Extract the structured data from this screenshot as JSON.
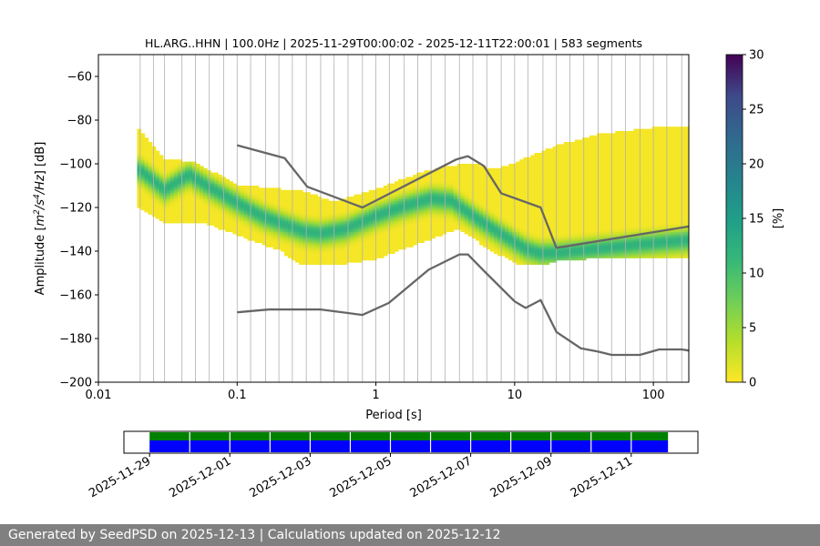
{
  "chart_data": [
    {
      "type": "heatmap",
      "title": "HL.ARG..HHN | 100.0Hz | 2025-11-29T00:00:02 - 2025-12-11T22:00:01 | 583 segments",
      "xlabel": "Period [s]",
      "ylabel_prefix": "Amplitude [",
      "ylabel_unit_parts": [
        "m",
        "2",
        "/s",
        "4",
        "/Hz",
        "] [dB]"
      ],
      "x_scale": "log",
      "xlim": [
        0.01,
        180
      ],
      "ylim": [
        -200,
        -50
      ],
      "x_ticks": [
        0.01,
        0.1,
        1,
        10,
        100
      ],
      "x_tick_labels": [
        "0.01",
        "0.1",
        "1",
        "10",
        "100"
      ],
      "y_ticks": [
        -200,
        -180,
        -160,
        -140,
        -120,
        -100,
        -80,
        -60
      ],
      "y_tick_labels": [
        "−200",
        "−180",
        "−160",
        "−140",
        "−120",
        "−100",
        "−80",
        "−60"
      ],
      "grid": "vertical lines at period bins",
      "period_grid_lines": [
        0.02,
        0.025,
        0.03,
        0.04,
        0.05,
        0.063,
        0.08,
        0.1,
        0.125,
        0.16,
        0.2,
        0.25,
        0.315,
        0.4,
        0.5,
        0.63,
        0.8,
        1,
        1.25,
        1.6,
        2,
        2.5,
        3.15,
        4,
        5,
        6.3,
        8,
        10,
        12.5,
        16,
        20,
        25,
        31.5,
        40,
        50,
        63,
        80,
        100,
        125,
        160
      ],
      "colorbar": {
        "label": "[%]",
        "range": [
          0,
          30
        ],
        "ticks": [
          0,
          5,
          10,
          15,
          20,
          25,
          30
        ],
        "colormap": "viridis_r"
      },
      "density_band": {
        "description": "Probabilistic PSD density; ridge = mode, spread = occupied amplitude range",
        "ridge": [
          [
            0.02,
            -103
          ],
          [
            0.03,
            -112
          ],
          [
            0.045,
            -105
          ],
          [
            0.06,
            -110
          ],
          [
            0.1,
            -118
          ],
          [
            0.15,
            -124
          ],
          [
            0.2,
            -127
          ],
          [
            0.3,
            -131
          ],
          [
            0.4,
            -132
          ],
          [
            0.6,
            -130
          ],
          [
            1,
            -124
          ],
          [
            1.5,
            -120
          ],
          [
            2.5,
            -116
          ],
          [
            3.5,
            -117
          ],
          [
            5,
            -124
          ],
          [
            7,
            -130
          ],
          [
            10,
            -136
          ],
          [
            12,
            -139
          ],
          [
            15,
            -141
          ],
          [
            20,
            -141
          ],
          [
            40,
            -139
          ],
          [
            80,
            -137
          ],
          [
            180,
            -135
          ]
        ],
        "upper": [
          [
            0.019,
            -83
          ],
          [
            0.03,
            -98
          ],
          [
            0.05,
            -100
          ],
          [
            0.1,
            -110
          ],
          [
            0.2,
            -112
          ],
          [
            0.3,
            -113
          ],
          [
            0.5,
            -118
          ],
          [
            1,
            -112
          ],
          [
            2,
            -105
          ],
          [
            3,
            -102
          ],
          [
            5,
            -100
          ],
          [
            7,
            -103
          ],
          [
            10,
            -100
          ],
          [
            20,
            -92
          ],
          [
            40,
            -87
          ],
          [
            100,
            -84
          ],
          [
            180,
            -83
          ]
        ],
        "lower": [
          [
            0.019,
            -120
          ],
          [
            0.03,
            -127
          ],
          [
            0.06,
            -128
          ],
          [
            0.1,
            -133
          ],
          [
            0.2,
            -140
          ],
          [
            0.3,
            -147
          ],
          [
            0.6,
            -146
          ],
          [
            1,
            -144
          ],
          [
            2,
            -137
          ],
          [
            3,
            -133
          ],
          [
            4,
            -130
          ],
          [
            6,
            -138
          ],
          [
            10,
            -146
          ],
          [
            15,
            -147
          ],
          [
            20,
            -145
          ],
          [
            50,
            -143
          ],
          [
            180,
            -143
          ]
        ]
      },
      "series": [
        {
          "name": "",
          "color": "#666666",
          "points": [
            [
              0.1,
              -91.5
            ],
            [
              0.22,
              -97.4
            ],
            [
              0.32,
              -110.5
            ],
            [
              0.8,
              -120
            ],
            [
              3.8,
              -98.0
            ],
            [
              4.6,
              -96.5
            ],
            [
              6.0,
              -101
            ],
            [
              8.0,
              -113.5
            ],
            [
              15.4,
              -120
            ],
            [
              20.0,
              -138.5
            ],
            [
              180,
              -128.7
            ]
          ]
        },
        {
          "name": "",
          "color": "#666666",
          "points": [
            [
              0.1,
              -168
            ],
            [
              0.17,
              -166.7
            ],
            [
              0.4,
              -166.7
            ],
            [
              0.8,
              -169.2
            ],
            [
              1.24,
              -163.7
            ],
            [
              2.4,
              -148.5
            ],
            [
              4.0,
              -141.5
            ],
            [
              4.6,
              -141.5
            ],
            [
              6.0,
              -149
            ],
            [
              10,
              -163
            ],
            [
              12,
              -166
            ],
            [
              15.4,
              -162.4
            ],
            [
              20,
              -177
            ],
            [
              30,
              -184.5
            ],
            [
              40,
              -186
            ],
            [
              50,
              -187.5
            ],
            [
              80,
              -187.5
            ],
            [
              110,
              -185
            ],
            [
              160,
              -185
            ],
            [
              180,
              -185.5
            ]
          ]
        }
      ]
    },
    {
      "type": "timeline",
      "x_tick_labels": [
        "2025-11-29",
        "2025-12-01",
        "2025-12-03",
        "2025-12-05",
        "2025-12-07",
        "2025-12-09",
        "2025-12-11"
      ],
      "range_start": "2025-11-29",
      "covered_start": "2025-11-29",
      "covered_end": "2025-12-11T22:00:01",
      "track_colors": [
        "#008000",
        "#0000ff"
      ]
    }
  ],
  "footer": {
    "text": "Generated by SeedPSD on 2025-12-13 | Calculations updated on 2025-12-12"
  }
}
